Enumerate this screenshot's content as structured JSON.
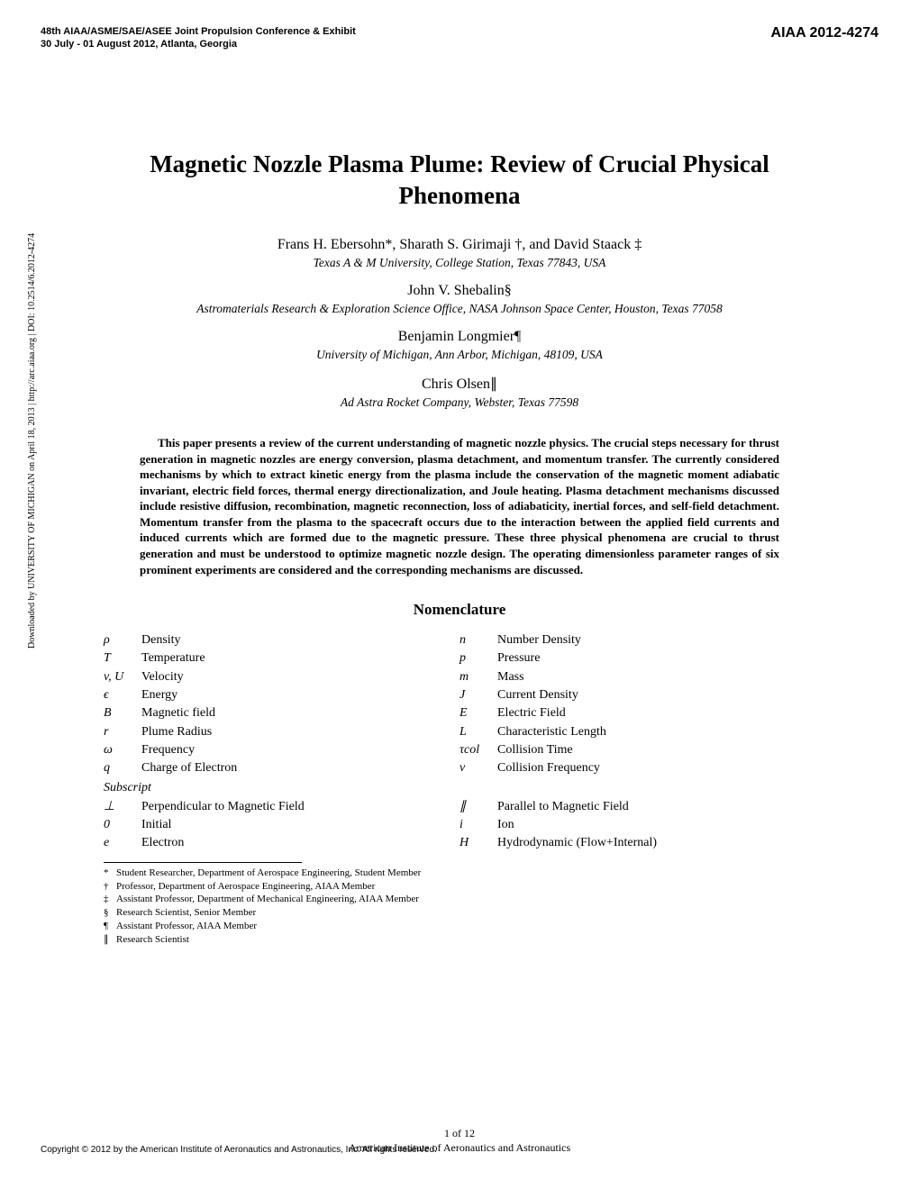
{
  "header": {
    "conference_line1": "48th AIAA/ASME/SAE/ASEE Joint Propulsion Conference & Exhibit",
    "conference_line2": "30 July - 01 August 2012, Atlanta, Georgia",
    "paper_id": "AIAA 2012-4274"
  },
  "sidebar": "Downloaded by UNIVERSITY OF MICHIGAN on April 18, 2013 | http://arc.aiaa.org | DOI: 10.2514/6.2012-4274",
  "title": "Magnetic Nozzle Plasma Plume: Review of Crucial Physical Phenomena",
  "authors": [
    {
      "line": "Frans H. Ebersohn*,   Sharath S. Girimaji †,   and   David Staack ‡",
      "affiliation": "Texas A & M University, College Station, Texas 77843, USA"
    },
    {
      "line": "John V. Shebalin§",
      "affiliation": "Astromaterials Research & Exploration Science Office, NASA Johnson Space Center, Houston, Texas 77058"
    },
    {
      "line": "Benjamin Longmier¶",
      "affiliation": "University of Michigan, Ann Arbor, Michigan, 48109, USA"
    },
    {
      "line": "Chris Olsen∥",
      "affiliation": "Ad Astra Rocket Company, Webster, Texas 77598"
    }
  ],
  "abstract": "This paper presents a review of the current understanding of magnetic nozzle physics. The crucial steps necessary for thrust generation in magnetic nozzles are energy conversion, plasma detachment, and momentum transfer. The currently considered mechanisms by which to extract kinetic energy from the plasma include the conservation of the magnetic moment adiabatic invariant, electric field forces, thermal energy directionalization, and Joule heating. Plasma detachment mechanisms discussed include resistive diffusion, recombination, magnetic reconnection, loss of adiabaticity, inertial forces, and self-field detachment. Momentum transfer from the plasma to the spacecraft occurs due to the interaction between the applied field currents and induced currents which are formed due to the magnetic pressure. These three physical phenomena are crucial to thrust generation and must be understood to optimize magnetic nozzle design. The operating dimensionless parameter ranges of six prominent experiments are considered and the corresponding mechanisms are discussed.",
  "nomenclature_heading": "Nomenclature",
  "nomenclature": {
    "left": [
      {
        "sym": "ρ",
        "desc": "Density"
      },
      {
        "sym": "T",
        "desc": "Temperature"
      },
      {
        "sym": "v, U",
        "desc": "Velocity"
      },
      {
        "sym": "ϵ",
        "desc": "Energy"
      },
      {
        "sym": "B",
        "desc": "Magnetic field"
      },
      {
        "sym": "r",
        "desc": "Plume Radius"
      },
      {
        "sym": "ω",
        "desc": "Frequency"
      },
      {
        "sym": "q",
        "desc": "Charge of Electron"
      }
    ],
    "right": [
      {
        "sym": "n",
        "desc": "Number Density"
      },
      {
        "sym": "p",
        "desc": "Pressure"
      },
      {
        "sym": "m",
        "desc": "Mass"
      },
      {
        "sym": "J",
        "desc": "Current Density"
      },
      {
        "sym": "E",
        "desc": "Electric Field"
      },
      {
        "sym": "L",
        "desc": "Characteristic Length"
      },
      {
        "sym": "τcol",
        "desc": "Collision Time"
      },
      {
        "sym": "ν",
        "desc": "Collision Frequency"
      }
    ],
    "subscript_label": "Subscript",
    "sub_left": [
      {
        "sym": "⊥",
        "desc": "Perpendicular to Magnetic Field"
      },
      {
        "sym": "0",
        "desc": "Initial"
      },
      {
        "sym": "e",
        "desc": "Electron"
      }
    ],
    "sub_right": [
      {
        "sym": "∥",
        "desc": "Parallel to Magnetic Field"
      },
      {
        "sym": "i",
        "desc": "Ion"
      },
      {
        "sym": "H",
        "desc": "Hydrodynamic (Flow+Internal)"
      }
    ]
  },
  "footnotes": [
    {
      "sym": "*",
      "text": "Student Researcher, Department of Aerospace Engineering, Student Member"
    },
    {
      "sym": "†",
      "text": "Professor, Department of Aerospace Engineering, AIAA Member"
    },
    {
      "sym": "‡",
      "text": "Assistant Professor, Department of Mechanical Engineering, AIAA Member"
    },
    {
      "sym": "§",
      "text": "Research Scientist, Senior Member"
    },
    {
      "sym": "¶",
      "text": "Assistant Professor, AIAA Member"
    },
    {
      "sym": "∥",
      "text": "Research Scientist"
    }
  ],
  "page_number": "1 of 12",
  "footer_institute": "American Institute of Aeronautics and Astronautics",
  "copyright": "Copyright © 2012 by the American Institute of Aeronautics and Astronautics, Inc. All rights reserved."
}
